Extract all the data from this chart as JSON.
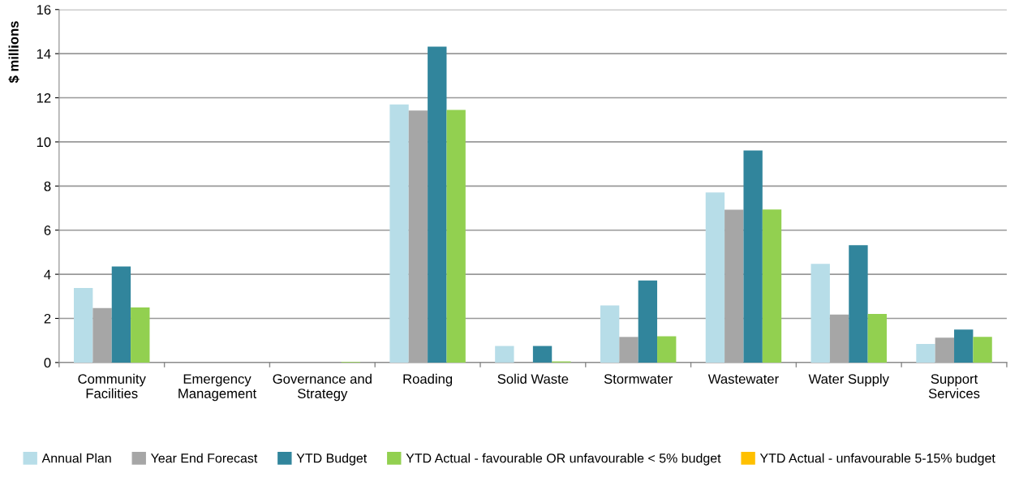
{
  "chart_data": {
    "type": "bar",
    "ylabel": "$ millions",
    "categories": [
      "Community\nFacilities",
      "Emergency\nManagement",
      "Governance and\nStrategy",
      "Roading",
      "Solid Waste",
      "Stormwater",
      "Wastewater",
      "Water Supply",
      "Support\nServices"
    ],
    "series": [
      {
        "name": "Annual Plan",
        "color": "#b7dde8",
        "values": [
          3.38,
          0,
          0,
          11.7,
          0.75,
          2.59,
          7.71,
          4.47,
          0.84
        ]
      },
      {
        "name": "Year End Forecast",
        "color": "#a6a6a6",
        "values": [
          2.47,
          0,
          0,
          11.42,
          0,
          1.16,
          6.93,
          2.17,
          1.13
        ]
      },
      {
        "name": "YTD Budget",
        "color": "#31859c",
        "values": [
          4.35,
          0,
          0,
          14.32,
          0.75,
          3.72,
          9.61,
          5.32,
          1.49
        ]
      },
      {
        "name": "YTD Actual - favourable OR unfavourable < 5% budget",
        "color": "#92d050",
        "values": [
          2.5,
          0,
          0.03,
          11.45,
          0.05,
          1.19,
          6.94,
          2.2,
          1.16
        ]
      },
      {
        "name": "YTD Actual - unfavourable 5-15% budget",
        "color": "#ffc000",
        "values": [
          null,
          null,
          null,
          null,
          null,
          null,
          null,
          null,
          null
        ]
      }
    ],
    "ylim": [
      0,
      16
    ],
    "yticks": [
      0,
      2,
      4,
      6,
      8,
      10,
      12,
      14,
      16
    ],
    "grid": "y",
    "legend": "bottom"
  }
}
